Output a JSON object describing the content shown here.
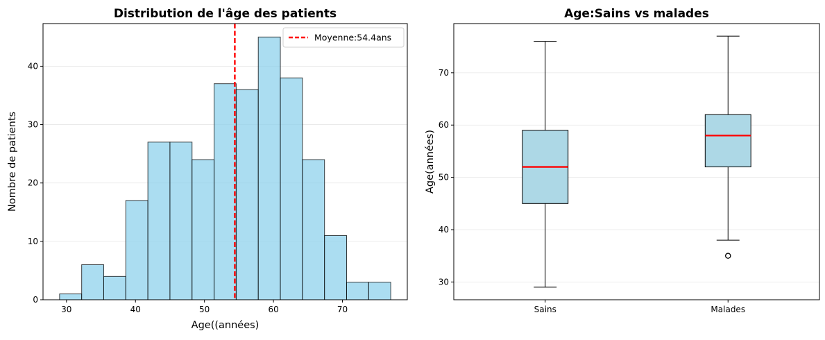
{
  "chart_data": [
    {
      "type": "bar",
      "title": "Distribution de l'âge des patients",
      "xlabel": "Age((années)",
      "ylabel": "Nombre de patients",
      "xlim": [
        26.6,
        79.4
      ],
      "ylim": [
        0,
        47.3
      ],
      "xticks": [
        30,
        40,
        50,
        60,
        70
      ],
      "yticks": [
        0,
        10,
        20,
        30,
        40
      ],
      "bin_edges": [
        29,
        32.2,
        35.4,
        38.6,
        41.8,
        45,
        48.2,
        51.4,
        54.6,
        57.8,
        61,
        64.2,
        67.4,
        70.6,
        73.8,
        77
      ],
      "values": [
        1,
        6,
        4,
        17,
        27,
        27,
        24,
        37,
        36,
        45,
        38,
        24,
        11,
        3,
        3
      ],
      "bar_color": "#87ceeb",
      "mean_line": {
        "value": 54.4,
        "color": "#ff0000",
        "label": "Moyenne:54.4ans"
      },
      "legend": "top-right",
      "grid": "y"
    },
    {
      "type": "box",
      "title": "Age:Sains vs malades",
      "ylabel": "Age(années)",
      "ylim": [
        26.6,
        79.4
      ],
      "yticks": [
        30,
        40,
        50,
        60,
        70
      ],
      "categories": [
        "Sains",
        "Malades"
      ],
      "boxes": [
        {
          "name": "Sains",
          "whisker_low": 29,
          "q1": 45,
          "median": 52,
          "q3": 59,
          "whisker_high": 76,
          "outliers": []
        },
        {
          "name": "Malades",
          "whisker_low": 38,
          "q1": 52,
          "median": 58,
          "q3": 62,
          "whisker_high": 77,
          "outliers": [
            35
          ]
        }
      ],
      "box_color": "#add8e6",
      "median_color": "#ff0000",
      "grid": "y"
    }
  ]
}
